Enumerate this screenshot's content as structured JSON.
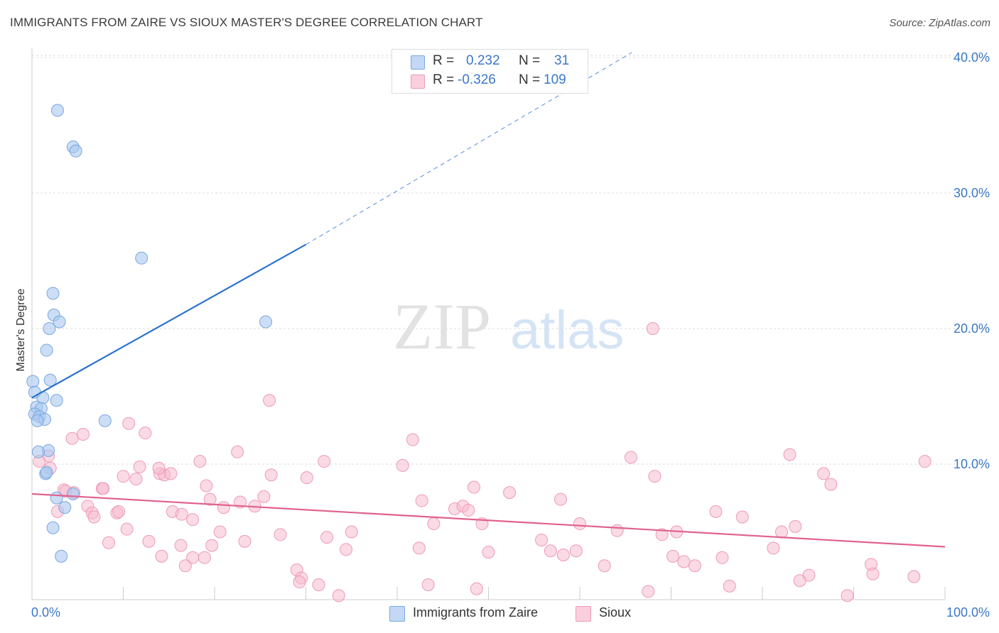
{
  "title": "IMMIGRANTS FROM ZAIRE VS SIOUX MASTER'S DEGREE CORRELATION CHART",
  "source": "Source: ZipAtlas.com",
  "watermark": {
    "zip": "ZIP",
    "atlas": "atlas"
  },
  "colors": {
    "blue_fill": "#a9c8f0",
    "blue_stroke": "#7aa6e0",
    "blue_line": "#2a72d0",
    "pink_fill": "#f6bcd0",
    "pink_stroke": "#ee9ab6",
    "pink_line": "#e0628e",
    "axis_text": "#3a78c9",
    "grid": "#dddddd"
  },
  "legend": {
    "rows": [
      {
        "r_label": "R =",
        "r_value": "0.232",
        "n_label": "N =",
        "n_value": "31"
      },
      {
        "r_label": "R =",
        "r_value": "-0.326",
        "n_label": "N =",
        "n_value": "109"
      }
    ]
  },
  "bottom_legend": {
    "series1": "Immigrants from Zaire",
    "series2": "Sioux"
  },
  "chart_data": {
    "type": "scatter",
    "title": "IMMIGRANTS FROM ZAIRE VS SIOUX MASTER'S DEGREE CORRELATION CHART",
    "xlabel": "",
    "ylabel": "Master's Degree",
    "xlim": [
      0,
      100
    ],
    "ylim": [
      0,
      42
    ],
    "x_tick_labels": [
      "0.0%",
      "100.0%"
    ],
    "y_ticks": [
      10,
      20,
      30,
      40
    ],
    "y_tick_labels": [
      "10.0%",
      "20.0%",
      "30.0%",
      "40.0%"
    ],
    "series": [
      {
        "name": "Immigrants from Zaire",
        "color": "#a9c8f0",
        "points": [
          [
            2.8,
            36.1
          ],
          [
            4.5,
            33.4
          ],
          [
            4.8,
            33.1
          ],
          [
            12.0,
            25.2
          ],
          [
            2.3,
            22.6
          ],
          [
            2.4,
            21.0
          ],
          [
            3.0,
            20.5
          ],
          [
            1.9,
            20.0
          ],
          [
            1.6,
            18.4
          ],
          [
            25.6,
            20.5
          ],
          [
            2.0,
            16.2
          ],
          [
            0.1,
            16.1
          ],
          [
            0.3,
            15.3
          ],
          [
            1.2,
            14.9
          ],
          [
            2.7,
            14.7
          ],
          [
            0.5,
            14.2
          ],
          [
            1.0,
            14.1
          ],
          [
            0.3,
            13.7
          ],
          [
            0.8,
            13.5
          ],
          [
            1.4,
            13.3
          ],
          [
            0.6,
            13.2
          ],
          [
            8.0,
            13.2
          ],
          [
            1.8,
            11.0
          ],
          [
            0.7,
            10.9
          ],
          [
            1.5,
            9.3
          ],
          [
            1.6,
            9.4
          ],
          [
            4.5,
            7.8
          ],
          [
            2.7,
            7.5
          ],
          [
            3.6,
            6.8
          ],
          [
            2.3,
            5.3
          ],
          [
            3.2,
            3.2
          ]
        ],
        "trend": {
          "x0": 0,
          "y0": 14.9,
          "x1": 30,
          "y1": 26.2,
          "dash_to_x": 65.7,
          "dash_to_y": 40.0
        }
      },
      {
        "name": "Sioux",
        "color": "#f6bcd0",
        "points": [
          [
            26.0,
            14.7
          ],
          [
            10.6,
            13.0
          ],
          [
            12.4,
            12.3
          ],
          [
            5.6,
            12.2
          ],
          [
            4.4,
            11.9
          ],
          [
            41.7,
            11.8
          ],
          [
            1.8,
            10.6
          ],
          [
            22.5,
            10.9
          ],
          [
            65.6,
            10.5
          ],
          [
            83.0,
            10.7
          ],
          [
            97.8,
            10.2
          ],
          [
            18.4,
            10.2
          ],
          [
            32.0,
            10.2
          ],
          [
            40.6,
            9.9
          ],
          [
            11.8,
            9.8
          ],
          [
            0.8,
            10.2
          ],
          [
            2.0,
            9.7
          ],
          [
            7.7,
            8.2
          ],
          [
            14.0,
            9.3
          ],
          [
            14.5,
            9.2
          ],
          [
            15.2,
            9.3
          ],
          [
            26.2,
            9.2
          ],
          [
            30.1,
            9.0
          ],
          [
            68.2,
            9.1
          ],
          [
            86.7,
            9.3
          ],
          [
            87.5,
            8.5
          ],
          [
            10.0,
            9.1
          ],
          [
            11.4,
            8.9
          ],
          [
            19.1,
            8.4
          ],
          [
            3.5,
            8.1
          ],
          [
            3.7,
            8.0
          ],
          [
            4.6,
            7.9
          ],
          [
            7.8,
            8.2
          ],
          [
            48.4,
            8.3
          ],
          [
            52.3,
            7.9
          ],
          [
            19.5,
            7.4
          ],
          [
            22.8,
            7.2
          ],
          [
            25.4,
            7.6
          ],
          [
            42.7,
            7.3
          ],
          [
            57.9,
            7.4
          ],
          [
            6.1,
            6.9
          ],
          [
            6.6,
            6.4
          ],
          [
            9.3,
            6.4
          ],
          [
            9.5,
            6.5
          ],
          [
            15.4,
            6.5
          ],
          [
            16.4,
            6.3
          ],
          [
            21.0,
            6.8
          ],
          [
            24.4,
            6.9
          ],
          [
            46.3,
            6.7
          ],
          [
            47.2,
            6.9
          ],
          [
            47.8,
            6.6
          ],
          [
            2.8,
            6.5
          ],
          [
            74.9,
            6.5
          ],
          [
            77.8,
            6.1
          ],
          [
            6.8,
            6.1
          ],
          [
            17.6,
            5.9
          ],
          [
            44.0,
            5.6
          ],
          [
            49.3,
            5.6
          ],
          [
            60.0,
            5.6
          ],
          [
            10.4,
            5.2
          ],
          [
            20.6,
            5.0
          ],
          [
            35.0,
            5.0
          ],
          [
            64.1,
            5.1
          ],
          [
            70.6,
            5.0
          ],
          [
            82.1,
            5.0
          ],
          [
            83.6,
            5.4
          ],
          [
            69.0,
            4.8
          ],
          [
            27.2,
            4.8
          ],
          [
            32.3,
            4.6
          ],
          [
            12.8,
            4.3
          ],
          [
            8.4,
            4.2
          ],
          [
            23.3,
            4.3
          ],
          [
            19.7,
            4.0
          ],
          [
            16.3,
            4.0
          ],
          [
            55.8,
            4.4
          ],
          [
            42.4,
            3.8
          ],
          [
            34.4,
            3.7
          ],
          [
            56.8,
            3.6
          ],
          [
            59.6,
            3.6
          ],
          [
            50.0,
            3.5
          ],
          [
            58.2,
            3.3
          ],
          [
            70.2,
            3.2
          ],
          [
            75.6,
            3.1
          ],
          [
            81.2,
            3.8
          ],
          [
            14.2,
            3.2
          ],
          [
            17.6,
            3.1
          ],
          [
            18.9,
            3.1
          ],
          [
            62.7,
            2.5
          ],
          [
            71.4,
            2.8
          ],
          [
            72.6,
            2.5
          ],
          [
            91.9,
            2.6
          ],
          [
            16.8,
            2.5
          ],
          [
            29.0,
            2.2
          ],
          [
            85.1,
            1.8
          ],
          [
            92.1,
            1.9
          ],
          [
            96.6,
            1.7
          ],
          [
            29.5,
            1.6
          ],
          [
            84.1,
            1.4
          ],
          [
            29.3,
            1.3
          ],
          [
            31.4,
            1.1
          ],
          [
            43.4,
            1.1
          ],
          [
            76.4,
            1.0
          ],
          [
            48.7,
            0.8
          ],
          [
            67.5,
            0.6
          ],
          [
            33.6,
            0.3
          ],
          [
            89.3,
            0.3
          ],
          [
            68.0,
            20.0
          ],
          [
            13.9,
            9.7
          ]
        ],
        "trend": {
          "x0": 0,
          "y0": 7.8,
          "x1": 100,
          "y1": 3.9
        }
      }
    ]
  }
}
